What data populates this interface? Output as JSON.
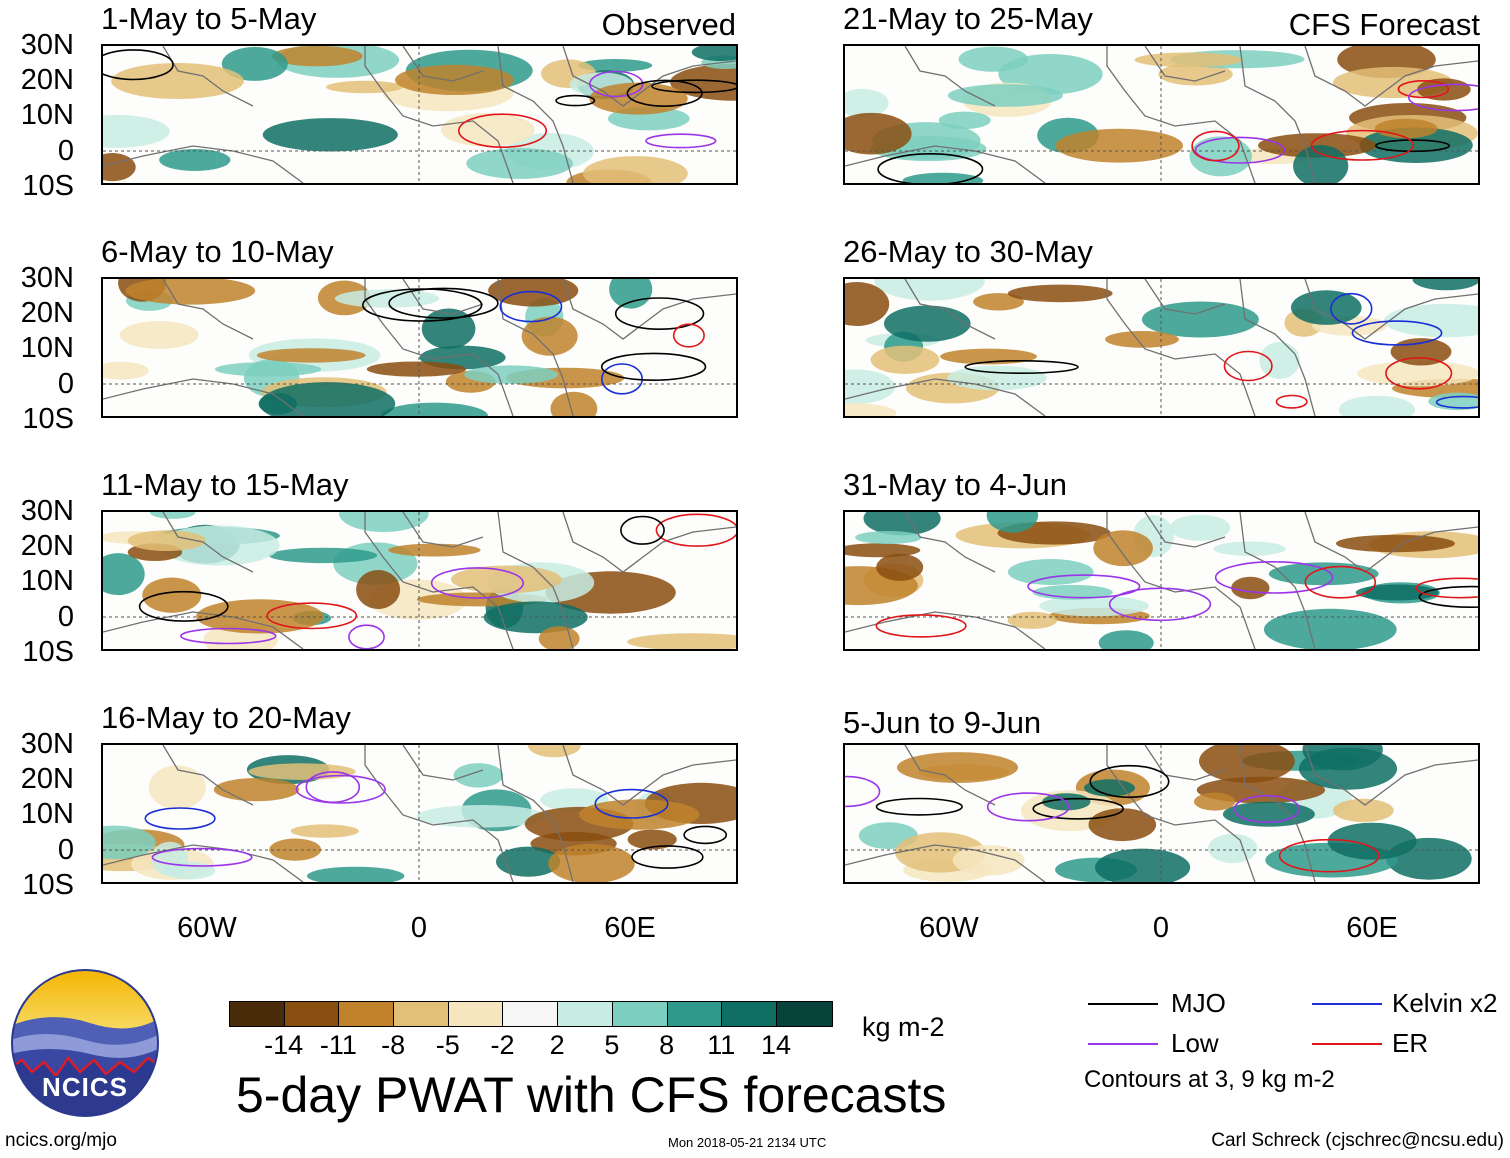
{
  "headers": {
    "observed": "Observed",
    "forecast": "CFS Forecast"
  },
  "lat_labels": [
    "30N",
    "20N",
    "10N",
    "0",
    "10S"
  ],
  "lon_labels": [
    "60W",
    "0",
    "60E"
  ],
  "panels_left": [
    {
      "title": "1-May to 5-May"
    },
    {
      "title": "6-May to 10-May"
    },
    {
      "title": "11-May to 15-May"
    },
    {
      "title": "16-May to 20-May"
    }
  ],
  "panels_right": [
    {
      "title": "21-May to 25-May"
    },
    {
      "title": "26-May to 30-May"
    },
    {
      "title": "31-May to 4-Jun"
    },
    {
      "title": "5-Jun to 9-Jun"
    }
  ],
  "colorbar": {
    "colors": [
      "#4a2c0a",
      "#8a4e10",
      "#c0822b",
      "#e3c078",
      "#f6e6bf",
      "#f6f6f6",
      "#c7ece3",
      "#7ccfc0",
      "#2f9a8c",
      "#0f6f64",
      "#07423b"
    ],
    "ticks": [
      "-14",
      "-11",
      "-8",
      "-5",
      "-2",
      "2",
      "5",
      "8",
      "11",
      "14"
    ],
    "units": "kg m-2"
  },
  "title": "5-day PWAT with CFS forecasts",
  "legend": [
    {
      "label": "MJO",
      "color": "#000000"
    },
    {
      "label": "Kelvin x2",
      "color": "#1a2fd6"
    },
    {
      "label": "Low",
      "color": "#9b35e8"
    },
    {
      "label": "ER",
      "color": "#e0161b"
    }
  ],
  "contours_note": "Contours at 3, 9 kg m-2",
  "logo_text": "NCICS",
  "footer": {
    "left": "ncics.org/mjo",
    "center": "Mon 2018-05-21 2134 UTC",
    "right": "Carl Schreck (cjschrec@ncsu.edu)"
  },
  "colors": {
    "border": "#000000",
    "land": "#707070"
  }
}
